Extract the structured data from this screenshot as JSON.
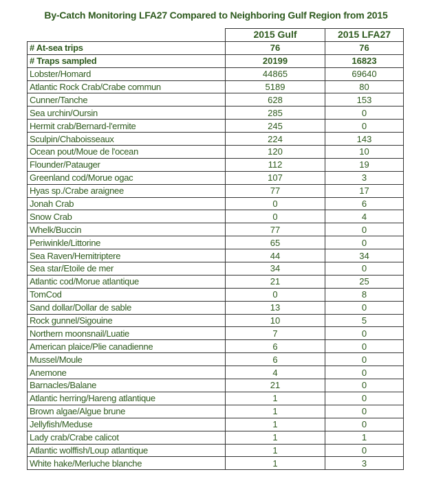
{
  "title": "By-Catch Monitoring LFA27 Compared to Neighboring Gulf Region from 2015",
  "columns": [
    "2015 Gulf",
    "2015 LFA27"
  ],
  "summary_rows": [
    {
      "label": "# At-sea trips",
      "gulf": "76",
      "lfa27": "76"
    },
    {
      "label": "# Traps sampled",
      "gulf": "20199",
      "lfa27": "16823"
    }
  ],
  "rows": [
    {
      "label": "Lobster/Homard",
      "gulf": "44865",
      "lfa27": "69640"
    },
    {
      "label": "Atlantic Rock Crab/Crabe commun",
      "gulf": "5189",
      "lfa27": "80"
    },
    {
      "label": "Cunner/Tanche",
      "gulf": "628",
      "lfa27": "153"
    },
    {
      "label": "Sea urchin/Oursin",
      "gulf": "285",
      "lfa27": "0"
    },
    {
      "label": "Hermit crab/Bernard-l'ermite",
      "gulf": "245",
      "lfa27": "0"
    },
    {
      "label": "Sculpin/Chaboisseaux",
      "gulf": "224",
      "lfa27": "143"
    },
    {
      "label": "Ocean pout/Moue de l'ocean",
      "gulf": "120",
      "lfa27": "10"
    },
    {
      "label": "Flounder/Patauger",
      "gulf": "112",
      "lfa27": "19"
    },
    {
      "label": "Greenland cod/Morue ogac",
      "gulf": "107",
      "lfa27": "3"
    },
    {
      "label": "Hyas sp./Crabe araignee",
      "gulf": "77",
      "lfa27": "17"
    },
    {
      "label": "Jonah Crab",
      "gulf": "0",
      "lfa27": "6"
    },
    {
      "label": "Snow Crab",
      "gulf": "0",
      "lfa27": "4"
    },
    {
      "label": "Whelk/Buccin",
      "gulf": "77",
      "lfa27": "0"
    },
    {
      "label": "Periwinkle/Littorine",
      "gulf": "65",
      "lfa27": "0"
    },
    {
      "label": "Sea Raven/Hemitriptere",
      "gulf": "44",
      "lfa27": "34"
    },
    {
      "label": "Sea star/Etoile de mer",
      "gulf": "34",
      "lfa27": "0"
    },
    {
      "label": "Atlantic cod/Morue atlantique",
      "gulf": "21",
      "lfa27": "25"
    },
    {
      "label": "TomCod",
      "gulf": "0",
      "lfa27": "8"
    },
    {
      "label": "Sand dollar/Dollar de sable",
      "gulf": "13",
      "lfa27": "0"
    },
    {
      "label": "Rock gunnel/Sigouine",
      "gulf": "10",
      "lfa27": "5"
    },
    {
      "label": "Northern moonsnail/Luatie",
      "gulf": "7",
      "lfa27": "0"
    },
    {
      "label": "American plaice/Plie canadienne",
      "gulf": "6",
      "lfa27": "0"
    },
    {
      "label": "Mussel/Moule",
      "gulf": "6",
      "lfa27": "0"
    },
    {
      "label": "Anemone",
      "gulf": "4",
      "lfa27": "0"
    },
    {
      "label": "Barnacles/Balane",
      "gulf": "21",
      "lfa27": "0"
    },
    {
      "label": "Atlantic herring/Hareng atlantique",
      "gulf": "1",
      "lfa27": "0"
    },
    {
      "label": "Brown algae/Algue brune",
      "gulf": "1",
      "lfa27": "0"
    },
    {
      "label": "Jellyfish/Meduse",
      "gulf": "1",
      "lfa27": "0"
    },
    {
      "label": "Lady crab/Crabe calicot",
      "gulf": "1",
      "lfa27": "1"
    },
    {
      "label": "Atlantic wolffish/Loup atlantique",
      "gulf": "1",
      "lfa27": "0"
    },
    {
      "label": "White hake/Merluche blanche",
      "gulf": "1",
      "lfa27": "3"
    }
  ],
  "colors": {
    "text": "#2e5a1e",
    "border": "#333333"
  }
}
